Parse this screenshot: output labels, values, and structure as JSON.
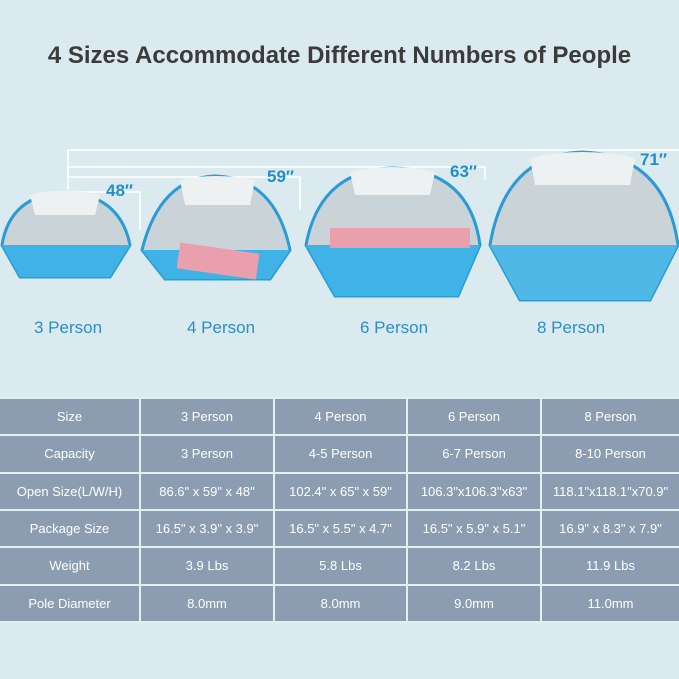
{
  "title": "4 Sizes Accommodate Different Numbers of People",
  "colors": {
    "background": "#dbeaee",
    "table": "#8c9db1",
    "accent": "#1f8fc7",
    "tent_floor": "#3fb3e6"
  },
  "tents": [
    {
      "height": "48″",
      "caption": "3 Person"
    },
    {
      "height": "59″",
      "caption": "4 Person"
    },
    {
      "height": "63″",
      "caption": "6 Person"
    },
    {
      "height": "71″",
      "caption": "8 Person"
    }
  ],
  "table": {
    "rows": [
      {
        "label": "Size",
        "values": [
          "3 Person",
          "4 Person",
          "6 Person",
          "8 Person"
        ]
      },
      {
        "label": "Capacity",
        "values": [
          "3 Person",
          "4-5 Person",
          "6-7 Person",
          "8-10 Person"
        ]
      },
      {
        "label": "Open Size(L/W/H)",
        "values": [
          "86.6\" x 59\" x 48\"",
          "102.4\" x 65\" x 59\"",
          "106.3\"x106.3\"x63\"",
          "118.1\"x118.1\"x70.9\""
        ]
      },
      {
        "label": "Package Size",
        "values": [
          "16.5\" x 3.9\" x 3.9\"",
          "16.5\" x 5.5\" x 4.7\"",
          "16.5\" x 5.9\" x 5.1\"",
          "16.9\" x 8.3\" x 7.9\""
        ]
      },
      {
        "label": "Weight",
        "values": [
          "3.9 Lbs",
          "5.8 Lbs",
          "8.2 Lbs",
          "11.9 Lbs"
        ]
      },
      {
        "label": "Pole Diameter",
        "values": [
          "8.0mm",
          "8.0mm",
          "9.0mm",
          "11.0mm"
        ]
      }
    ]
  }
}
